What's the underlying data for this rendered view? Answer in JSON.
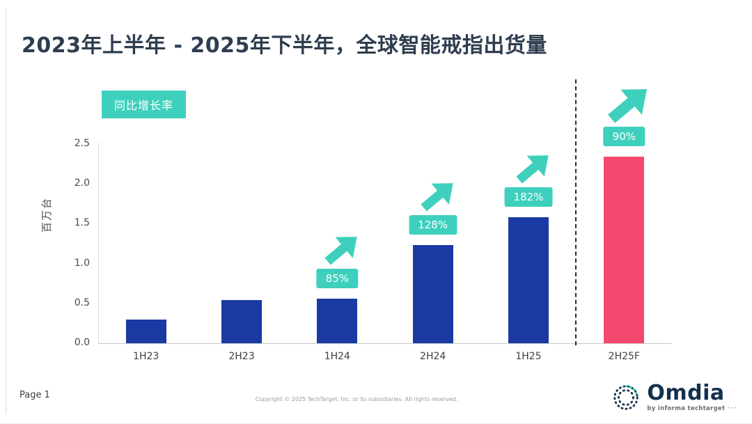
{
  "page": {
    "title": "2023年上半年 - 2025年下半年，全球智能戒指出货量",
    "footer": {
      "page_number": "Page 1",
      "copyright": "Copyright © 2025 TechTarget, Inc. or its subsidiaries. All rights reserved.",
      "brand_name": "Omdia",
      "brand_tagline": "by informa techtarget",
      "brand_tagline_dots": "•••"
    }
  },
  "legend": {
    "badge_label": "同比增长率"
  },
  "chart_data": {
    "type": "bar",
    "title": "2023年上半年 - 2025年下半年，全球智能戒指出货量",
    "xlabel": "",
    "ylabel": "百万台",
    "ylim": [
      0,
      2.5
    ],
    "yticks": [
      "0.0",
      "0.5",
      "1.0",
      "1.5",
      "2.0",
      "2.5"
    ],
    "grid": false,
    "legend_position": "top-left",
    "categories": [
      "1H23",
      "2H23",
      "1H24",
      "2H24",
      "1H25",
      "2H25F"
    ],
    "values": [
      0.3,
      0.54,
      0.56,
      1.23,
      1.58,
      2.34
    ],
    "growth_rates": [
      "",
      "",
      "85%",
      "128%",
      "182%",
      "90%"
    ],
    "forecast_index": 5,
    "divider_after_index": 4,
    "colors": {
      "bar": "#1a39a3",
      "forecast_bar": "#f5486f",
      "accent": "#3ed0bd",
      "title_text": "#2e3d4f"
    }
  }
}
